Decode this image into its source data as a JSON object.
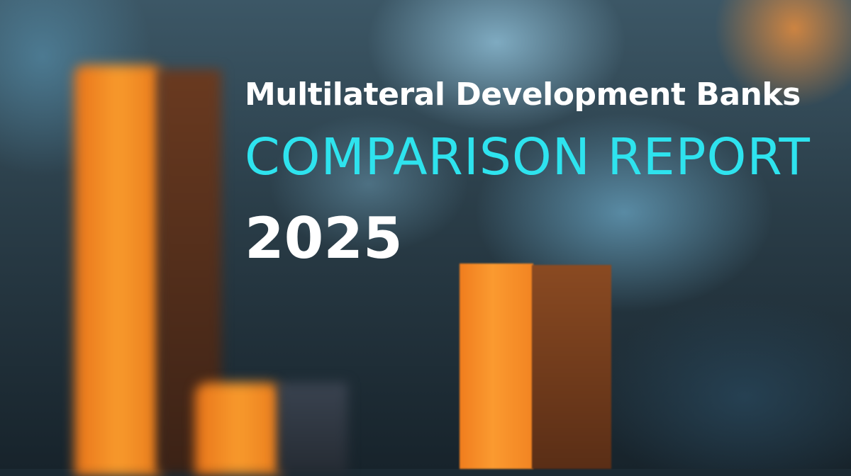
{
  "cover": {
    "line1": "Multilateral Development Banks",
    "line2": "COMPARISON REPORT",
    "line3": "2025",
    "accent_color": "#2ee3ee",
    "bar_color": "#f58a1f"
  }
}
